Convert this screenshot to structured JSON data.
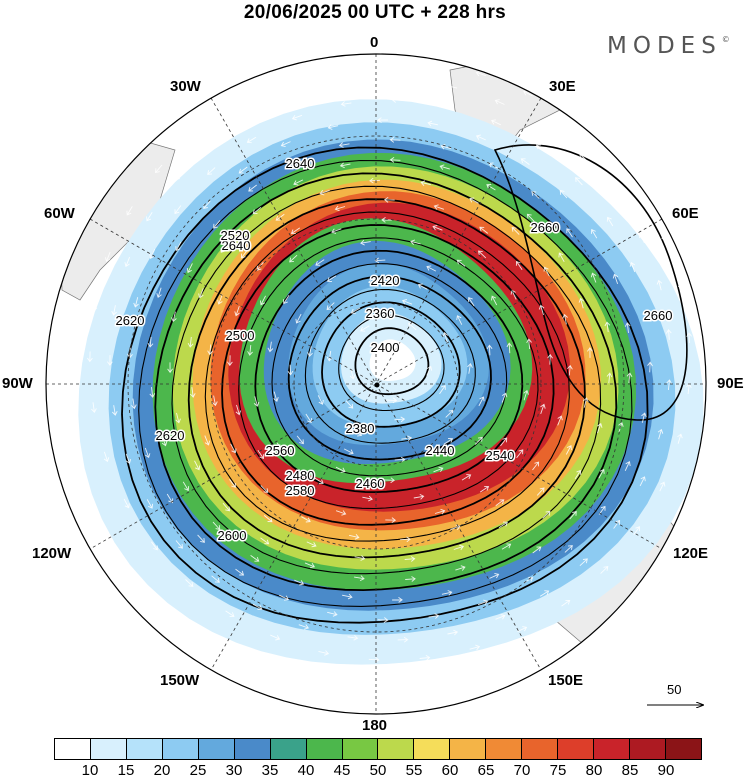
{
  "title": "20/06/2025  00 UTC  + 228 hrs",
  "brand": "MODES",
  "brand_mark": "©",
  "longitude_labels": {
    "top": "0",
    "lon_30e": "30E",
    "lon_60e": "60E",
    "lon_90e": "90E",
    "lon_120e": "120E",
    "lon_150e": "150E",
    "bottom": "180",
    "lon_150w": "150W",
    "lon_120w": "120W",
    "lon_90w": "90W",
    "lon_60w": "60W",
    "lon_30w": "30W"
  },
  "reference_vector_label": "50",
  "colorbar": {
    "ticks": [
      "10",
      "15",
      "20",
      "25",
      "30",
      "35",
      "40",
      "45",
      "50",
      "55",
      "60",
      "65",
      "70",
      "75",
      "80",
      "85",
      "90"
    ],
    "colors": [
      "#ffffff",
      "#d8f0fd",
      "#b5e2fa",
      "#8dcbf2",
      "#63a9dd",
      "#4a8ac9",
      "#3aa28a",
      "#4cb74c",
      "#78c843",
      "#bcd94c",
      "#f5dd5a",
      "#f4b447",
      "#f08a35",
      "#e8642c",
      "#dd3e2a",
      "#c9232a",
      "#ad1a22",
      "#8b1417"
    ]
  },
  "contours": {
    "labels": [
      "2640",
      "2640",
      "2620",
      "2620",
      "2600",
      "2580",
      "2560",
      "2540",
      "2520",
      "2500",
      "2480",
      "2460",
      "2440",
      "2420",
      "2400",
      "2380",
      "2360",
      "2660",
      "2660"
    ],
    "ring_levels": [
      2640,
      2620,
      2600,
      2580,
      2560,
      2540,
      2520,
      2500,
      2480,
      2460,
      2440,
      2420,
      2400,
      2380,
      2360
    ]
  },
  "wind_speed_rings": [
    {
      "level": 12,
      "color": "#d8f0fd"
    },
    {
      "level": 22,
      "color": "#8dcbf2"
    },
    {
      "level": 32,
      "color": "#4a8ac9"
    },
    {
      "level": 42,
      "color": "#4cb74c"
    },
    {
      "level": 52,
      "color": "#bcd94c"
    },
    {
      "level": 62,
      "color": "#f4b447"
    },
    {
      "level": 72,
      "color": "#e8642c"
    },
    {
      "level": 82,
      "color": "#c9232a"
    }
  ]
}
